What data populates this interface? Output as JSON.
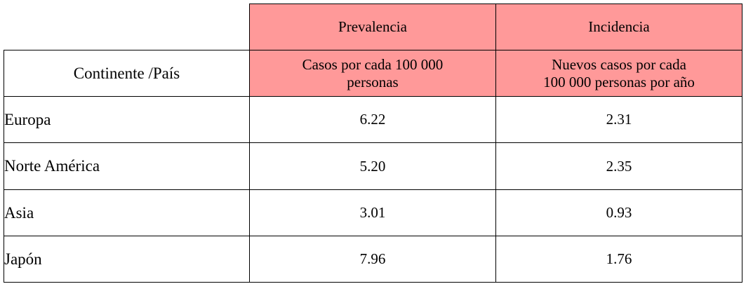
{
  "table": {
    "column_header": "Continente /País",
    "columns": [
      {
        "label": "Prevalencia",
        "unit_line1": "Casos por cada 100 000",
        "unit_line2": "personas"
      },
      {
        "label": "Incidencia",
        "unit_line1": "Nuevos casos por cada",
        "unit_line2": "100 000 personas por año"
      }
    ],
    "rows": [
      {
        "region": "Europa",
        "prevalencia": "6.22",
        "incidencia": "2.31"
      },
      {
        "region": "Norte América",
        "prevalencia": "5.20",
        "incidencia": "2.35"
      },
      {
        "region": "Asia",
        "prevalencia": "3.01",
        "incidencia": "0.93"
      },
      {
        "region": "Japón",
        "prevalencia": "7.96",
        "incidencia": "1.76"
      }
    ],
    "colors": {
      "header_fill": "#ff9999",
      "border": "#000000"
    }
  }
}
